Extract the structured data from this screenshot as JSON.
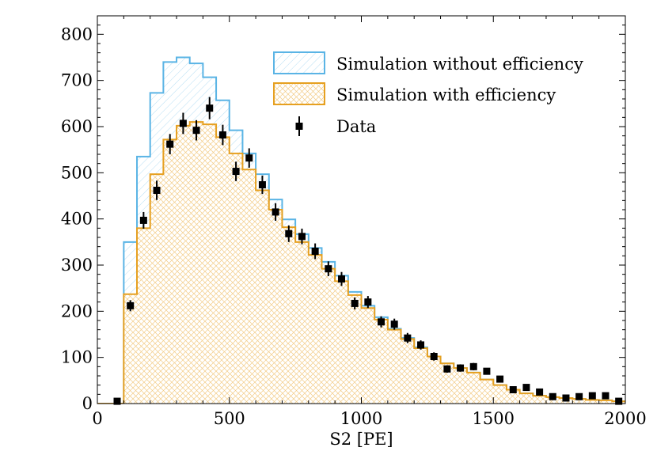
{
  "chart_data": {
    "type": "histogram",
    "xlabel": "S2 [PE]",
    "ylabel": "",
    "xlim": [
      0,
      2000
    ],
    "ylim": [
      0,
      840
    ],
    "x_ticks": [
      0,
      500,
      1000,
      1500,
      2000
    ],
    "y_ticks": [
      0,
      100,
      200,
      300,
      400,
      500,
      600,
      700,
      800
    ],
    "bin_edges": [
      0,
      50,
      100,
      150,
      200,
      250,
      300,
      350,
      400,
      450,
      500,
      550,
      600,
      650,
      700,
      750,
      800,
      850,
      900,
      950,
      1000,
      1050,
      1100,
      1150,
      1200,
      1250,
      1300,
      1350,
      1400,
      1450,
      1500,
      1550,
      1600,
      1650,
      1700,
      1750,
      1800,
      1850,
      1900,
      1950,
      2000
    ],
    "series": [
      {
        "name": "Simulation without efficiency",
        "color": "#5ab4e5",
        "hatch": "diagonal",
        "values": [
          0,
          0,
          350,
          535,
          673,
          740,
          750,
          737,
          707,
          657,
          592,
          542,
          497,
          442,
          399,
          367,
          337,
          307,
          277,
          242,
          212,
          187,
          162,
          142,
          122,
          102,
          87,
          77,
          67,
          52,
          40,
          30,
          22,
          17,
          14,
          12,
          10,
          8,
          7,
          5
        ]
      },
      {
        "name": "Simulation with efficiency",
        "color": "#e6a020",
        "hatch": "cross",
        "values": [
          0,
          0,
          237,
          380,
          497,
          572,
          602,
          610,
          605,
          577,
          542,
          507,
          462,
          420,
          382,
          350,
          322,
          292,
          265,
          235,
          207,
          182,
          160,
          140,
          120,
          102,
          87,
          77,
          67,
          52,
          40,
          30,
          22,
          17,
          14,
          12,
          10,
          8,
          7,
          5
        ]
      },
      {
        "name": "Data",
        "color": "#000000",
        "marker": "square",
        "x": [
          75,
          125,
          175,
          225,
          275,
          325,
          375,
          425,
          475,
          525,
          575,
          625,
          675,
          725,
          775,
          825,
          875,
          925,
          975,
          1025,
          1075,
          1125,
          1175,
          1225,
          1275,
          1325,
          1375,
          1425,
          1475,
          1525,
          1575,
          1625,
          1675,
          1725,
          1775,
          1825,
          1875,
          1925,
          1975
        ],
        "values": [
          5,
          212,
          397,
          462,
          562,
          607,
          592,
          640,
          582,
          503,
          532,
          474,
          415,
          368,
          362,
          330,
          292,
          270,
          217,
          220,
          177,
          172,
          142,
          127,
          102,
          75,
          77,
          80,
          70,
          53,
          30,
          35,
          25,
          15,
          12,
          15,
          17,
          17,
          5
        ],
        "errors": [
          2,
          12,
          18,
          21,
          22,
          23,
          22,
          24,
          22,
          21,
          21,
          20,
          19,
          18,
          17,
          17,
          16,
          15,
          13,
          13,
          12,
          12,
          11,
          10,
          9,
          8,
          8,
          8,
          7,
          7,
          5,
          6,
          4,
          4,
          3,
          4,
          4,
          4,
          2
        ]
      }
    ],
    "legend": {
      "placement": "top-right",
      "entries": [
        "Simulation without efficiency",
        "Simulation with efficiency",
        "Data"
      ]
    }
  }
}
